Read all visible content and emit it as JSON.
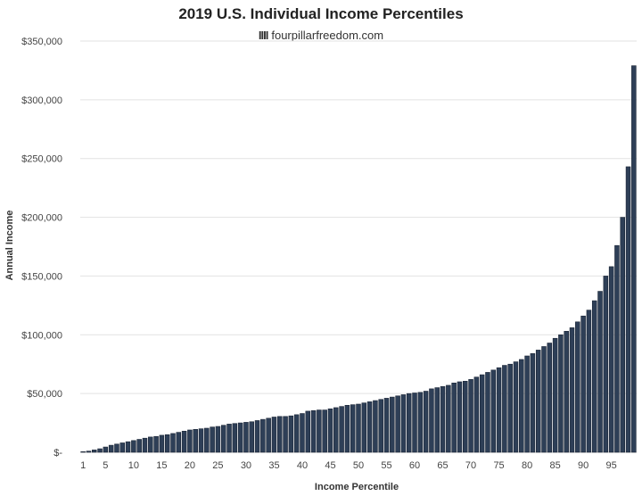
{
  "chart_data": {
    "type": "bar",
    "title": "2019 U.S. Individual Income Percentiles",
    "subtitle": "fourpillarfreedom.com",
    "subtitle_mark": "IIII",
    "xlabel": "Income Percentile",
    "ylabel": "Annual Income",
    "ylim": [
      0,
      350000
    ],
    "y_ticks": [
      0,
      50000,
      100000,
      150000,
      200000,
      250000,
      300000,
      350000
    ],
    "y_tick_labels": [
      "$-",
      "$50,000",
      "$100,000",
      "$150,000",
      "$200,000",
      "$250,000",
      "$300,000",
      "$350,000"
    ],
    "x_tick_labels": [
      "1",
      "5",
      "10",
      "15",
      "20",
      "25",
      "30",
      "35",
      "40",
      "45",
      "50",
      "55",
      "60",
      "65",
      "70",
      "75",
      "80",
      "85",
      "90",
      "95"
    ],
    "grid": "horizontal",
    "bar_color": "#2e3f57",
    "categories": [
      1,
      2,
      3,
      4,
      5,
      6,
      7,
      8,
      9,
      10,
      11,
      12,
      13,
      14,
      15,
      16,
      17,
      18,
      19,
      20,
      21,
      22,
      23,
      24,
      25,
      26,
      27,
      28,
      29,
      30,
      31,
      32,
      33,
      34,
      35,
      36,
      37,
      38,
      39,
      40,
      41,
      42,
      43,
      44,
      45,
      46,
      47,
      48,
      49,
      50,
      51,
      52,
      53,
      54,
      55,
      56,
      57,
      58,
      59,
      60,
      61,
      62,
      63,
      64,
      65,
      66,
      67,
      68,
      69,
      70,
      71,
      72,
      73,
      74,
      75,
      76,
      77,
      78,
      79,
      80,
      81,
      82,
      83,
      84,
      85,
      86,
      87,
      88,
      89,
      90,
      91,
      92,
      93,
      94,
      95,
      96,
      97,
      98,
      99
    ],
    "values": [
      500,
      1000,
      2000,
      3000,
      4500,
      6000,
      7000,
      8000,
      9000,
      10000,
      11000,
      12000,
      13000,
      13500,
      14500,
      15000,
      16000,
      17000,
      18000,
      19000,
      19500,
      20000,
      20500,
      21500,
      22000,
      23000,
      24000,
      24500,
      25000,
      25500,
      26000,
      27000,
      28000,
      29000,
      30000,
      30500,
      30500,
      31000,
      32000,
      33000,
      35000,
      35500,
      36000,
      36000,
      37000,
      38000,
      39000,
      40000,
      40500,
      41000,
      42000,
      43000,
      44000,
      45000,
      46000,
      47000,
      48000,
      49000,
      50000,
      50500,
      51000,
      52000,
      54000,
      55000,
      56000,
      57000,
      59000,
      60000,
      60500,
      62000,
      64000,
      66000,
      68000,
      70000,
      72000,
      74000,
      75000,
      77000,
      79000,
      82000,
      84000,
      87000,
      90000,
      93000,
      97000,
      100000,
      103000,
      106000,
      111000,
      116000,
      121000,
      129000,
      137000,
      150000,
      158000,
      176000,
      200000,
      243000,
      329000
    ]
  }
}
